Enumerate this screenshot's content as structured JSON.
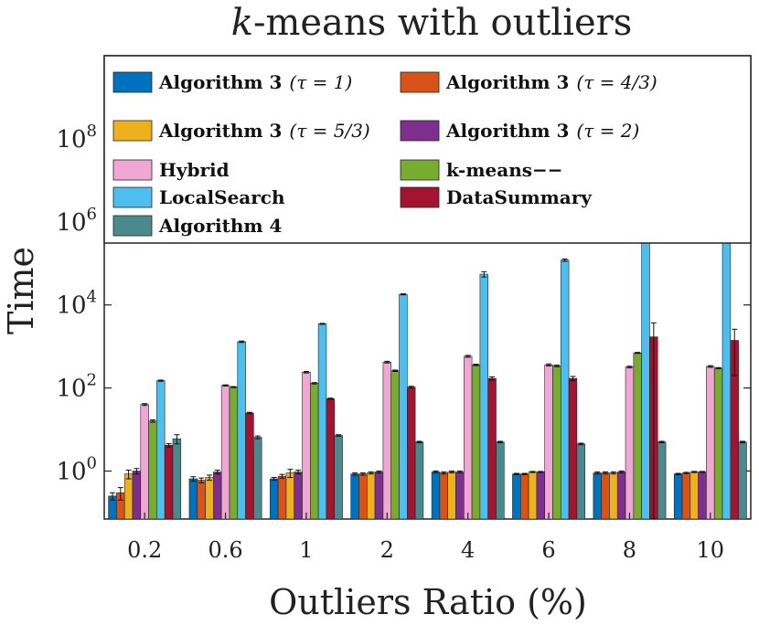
{
  "chart_data": {
    "type": "bar",
    "title_italic": "k",
    "title_rest": "-means with outliers",
    "xlabel": "Outliers Ratio (%)",
    "ylabel": "Time",
    "yscale": "log",
    "ylim": [
      0.07,
      10000000000.0
    ],
    "ytick_base": "10",
    "ytick_exponents": [
      "0",
      "2",
      "4",
      "6",
      "8"
    ],
    "categories": [
      "0.2",
      "0.6",
      "1",
      "2",
      "4",
      "6",
      "8",
      "10"
    ],
    "legend_position": "top",
    "series": [
      {
        "name": "Algorithm 3",
        "suffix": "(τ = 1)",
        "color": "#0072BD",
        "values": [
          0.25,
          0.65,
          0.65,
          0.85,
          0.95,
          0.85,
          0.9,
          0.85
        ],
        "errors": [
          0.05,
          0.08,
          0.05,
          0.05,
          0.05,
          0.03,
          0.05,
          0.03
        ]
      },
      {
        "name": "Algorithm 3",
        "suffix": "(τ = 4/3)",
        "color": "#D95319",
        "values": [
          0.3,
          0.6,
          0.75,
          0.85,
          0.9,
          0.85,
          0.9,
          0.9
        ],
        "errors": [
          0.1,
          0.08,
          0.08,
          0.05,
          0.05,
          0.03,
          0.05,
          0.03
        ]
      },
      {
        "name": "Algorithm 3",
        "suffix": "(τ = 5/3)",
        "color": "#EDB120",
        "values": [
          0.85,
          0.7,
          0.9,
          0.9,
          0.95,
          0.95,
          0.9,
          0.95
        ],
        "errors": [
          0.2,
          0.1,
          0.2,
          0.05,
          0.05,
          0.03,
          0.05,
          0.03
        ]
      },
      {
        "name": "Algorithm 3",
        "suffix": "(τ = 2)",
        "color": "#7E2F8E",
        "values": [
          1.0,
          0.95,
          0.95,
          0.95,
          0.95,
          0.95,
          0.95,
          0.95
        ],
        "errors": [
          0.15,
          0.1,
          0.1,
          0.05,
          0.05,
          0.03,
          0.05,
          0.03
        ]
      },
      {
        "name": "Hybrid",
        "suffix": "",
        "color": "#F1A7D3",
        "values": [
          40,
          115,
          240,
          420,
          580,
          360,
          320,
          330
        ],
        "errors": [
          2,
          4,
          10,
          20,
          30,
          20,
          15,
          15
        ]
      },
      {
        "name": "k-means−−",
        "suffix": "",
        "color": "#77AC30",
        "values": [
          16,
          105,
          130,
          260,
          360,
          340,
          700,
          300
        ],
        "errors": [
          1,
          3,
          5,
          10,
          15,
          15,
          20,
          10
        ]
      },
      {
        "name": "LocalSearch",
        "suffix": "",
        "color": "#4DBEEE",
        "values": [
          150,
          1300,
          3500,
          18000,
          55000,
          120000,
          450000,
          520000
        ],
        "errors": [
          5,
          50,
          100,
          500,
          8000,
          8000,
          10000,
          40000
        ]
      },
      {
        "name": "DataSummary",
        "suffix": "",
        "color": "#A2142F",
        "values": [
          4.2,
          25,
          55,
          105,
          170,
          170,
          1700,
          1400
        ],
        "errors": [
          0.4,
          1,
          2,
          5,
          15,
          20,
          2000,
          1200
        ]
      },
      {
        "name": "Algorithm 4",
        "suffix": "",
        "color": "#4A8A8D",
        "values": [
          6,
          6.5,
          7.2,
          5.0,
          5.0,
          4.5,
          5.0,
          5.0
        ],
        "errors": [
          1.5,
          0.5,
          0.3,
          0.2,
          0.2,
          0.2,
          0.2,
          0.2
        ]
      }
    ]
  }
}
